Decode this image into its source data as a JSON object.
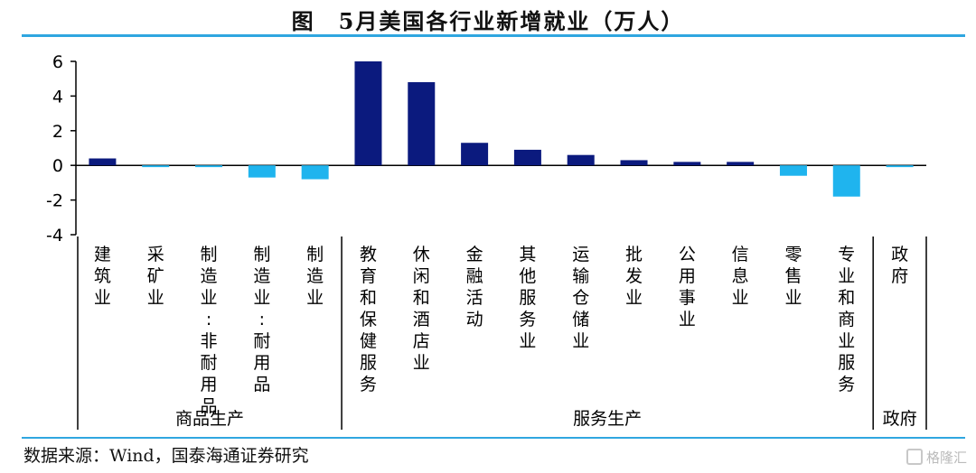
{
  "title": "图　5月美国各行业新增就业（万人）",
  "source": "数据来源：Wind，国泰海通证券研究",
  "watermark": "格隆汇",
  "colors": {
    "positive": "#0b1a7e",
    "negative": "#1fb4ee",
    "accent": "#2fa6e0",
    "axis": "#000000"
  },
  "chart_data": {
    "type": "bar",
    "title": "5月美国各行业新增就业（万人）",
    "ylabel": "",
    "ylim": [
      -4,
      6
    ],
    "yticks": [
      6,
      4,
      2,
      0,
      -2,
      -4
    ],
    "categories": [
      "建筑业",
      "采矿业",
      "制造业:非耐用品",
      "制造业:耐用品",
      "制造业",
      "教育和保健服务",
      "休闲和酒店业",
      "金融活动",
      "其他服务业",
      "运输仓储业",
      "批发业",
      "公用事业",
      "信息业",
      "零售业",
      "专业和商业服务",
      "政府"
    ],
    "values": [
      0.4,
      -0.1,
      -0.1,
      -0.7,
      -0.8,
      6.0,
      4.8,
      1.3,
      0.9,
      0.6,
      0.3,
      0.2,
      0.2,
      -0.6,
      -1.8,
      -0.1
    ],
    "groups": [
      {
        "label": "商品生产",
        "count": 5
      },
      {
        "label": "服务生产",
        "count": 10
      },
      {
        "label": "政府",
        "count": 1
      }
    ]
  }
}
